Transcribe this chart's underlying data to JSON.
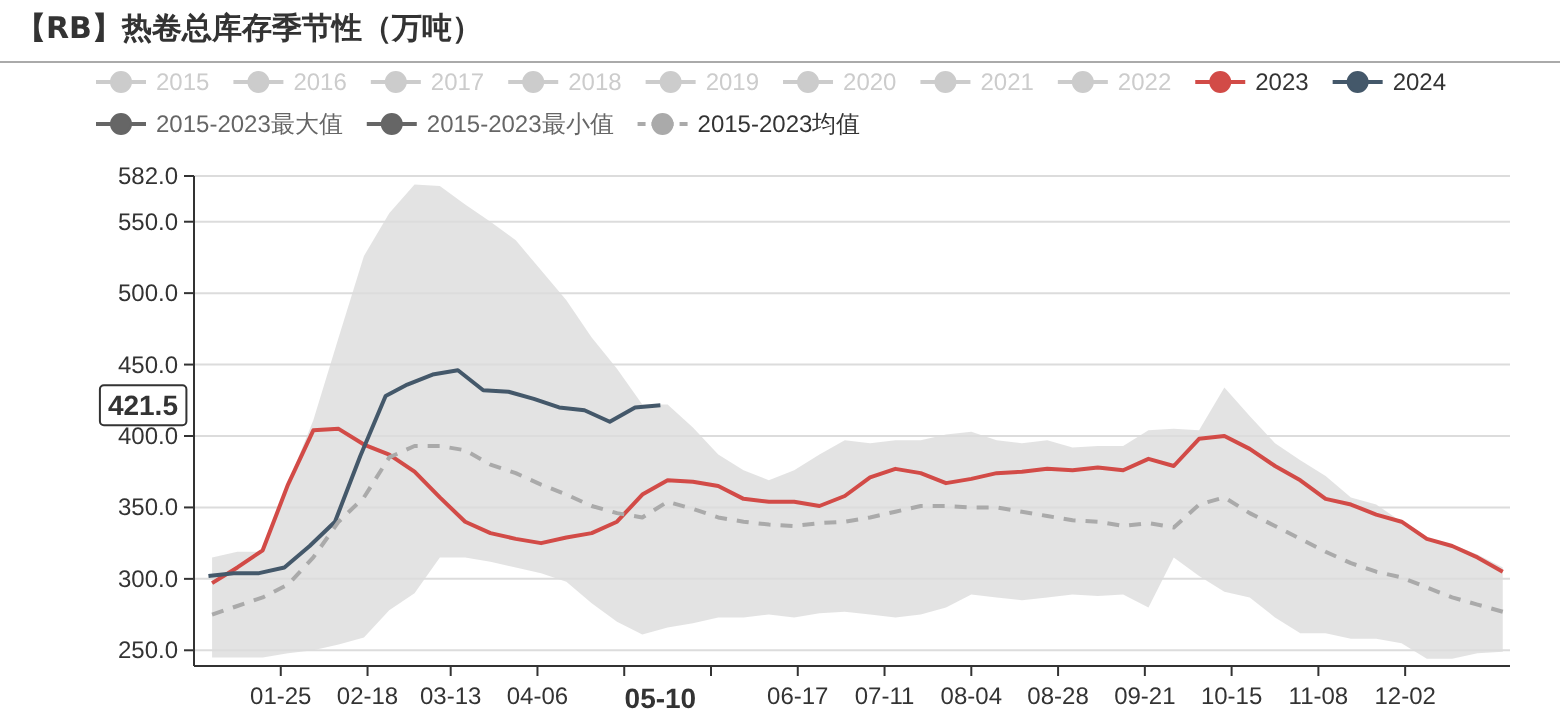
{
  "chart_data": {
    "type": "line",
    "title": "【RB】热卷总库存季节性（万吨）",
    "x": [
      "--01-06",
      "--01-13",
      "--01-20",
      "--01-27",
      "--02-03",
      "--02-10",
      "--02-17",
      "--02-24",
      "--03-03",
      "--03-10",
      "--03-17",
      "--03-24",
      "--03-31",
      "--04-07",
      "--04-14",
      "--04-21",
      "--04-28",
      "--05-05",
      "--05-12",
      "--05-19",
      "--05-26",
      "--06-02",
      "--06-09",
      "--06-16",
      "--06-23",
      "--06-30",
      "--07-07",
      "--07-14",
      "--07-21",
      "--07-28",
      "--08-04",
      "--08-11",
      "--08-18",
      "--08-25",
      "--09-01",
      "--09-08",
      "--09-15",
      "--09-22",
      "--09-29",
      "--10-06",
      "--10-13",
      "--10-20",
      "--10-27",
      "--11-03",
      "--11-10",
      "--11-17",
      "--11-24",
      "--12-01",
      "--12-08",
      "--12-15",
      "--12-22",
      "--12-29"
    ],
    "xlim": [
      "--01-01",
      "--12-31"
    ],
    "xticks": [
      {
        "value": "--01-25",
        "label": "01-25"
      },
      {
        "value": "--02-18",
        "label": "02-18"
      },
      {
        "value": "--03-13",
        "label": "03-13"
      },
      {
        "value": "--04-06",
        "label": "04-06"
      },
      {
        "value": "--04-30",
        "label": null
      },
      {
        "value": "--05-24",
        "label": null
      },
      {
        "value": "--06-17",
        "label": "06-17"
      },
      {
        "value": "--07-11",
        "label": "07-11"
      },
      {
        "value": "--08-04",
        "label": "08-04"
      },
      {
        "value": "--08-28",
        "label": "08-28"
      },
      {
        "value": "--09-21",
        "label": "09-21"
      },
      {
        "value": "--10-15",
        "label": "10-15"
      },
      {
        "value": "--11-08",
        "label": "11-08"
      },
      {
        "value": "--12-02",
        "label": "12-02"
      }
    ],
    "ylim": [
      239,
      582
    ],
    "yticks": [
      {
        "value": 250,
        "label": "250.0"
      },
      {
        "value": 300,
        "label": "300.0"
      },
      {
        "value": 350,
        "label": "350.0"
      },
      {
        "value": 400,
        "label": "400.0"
      },
      {
        "value": 450,
        "label": "450.0"
      },
      {
        "value": 500,
        "label": "500.0"
      },
      {
        "value": 550,
        "label": "550.0"
      },
      {
        "value": 582,
        "label": "582.0"
      }
    ],
    "grid": "y",
    "legend": "top",
    "annotations": [
      "421.5",
      "05-10"
    ],
    "series": [
      {
        "name": "2015",
        "color": "#cccccc",
        "values": [
          null,
          null,
          null,
          null,
          null,
          null,
          null,
          null,
          null,
          null,
          null,
          null,
          null,
          null,
          null,
          null,
          null,
          null,
          null,
          null,
          null,
          null,
          null,
          null,
          null,
          null,
          null,
          null,
          null,
          null,
          null,
          null,
          null,
          null,
          null,
          null,
          null,
          null,
          null,
          null,
          null,
          null,
          null,
          null,
          null,
          null,
          null,
          null,
          null,
          null,
          null,
          null
        ]
      },
      {
        "name": "2016",
        "color": "#cccccc",
        "values": [
          null,
          null,
          null,
          null,
          null,
          null,
          null,
          null,
          null,
          null,
          null,
          null,
          null,
          null,
          null,
          null,
          null,
          null,
          null,
          null,
          null,
          null,
          null,
          null,
          null,
          null,
          null,
          null,
          null,
          null,
          null,
          null,
          null,
          null,
          null,
          null,
          null,
          null,
          null,
          null,
          null,
          null,
          null,
          null,
          null,
          null,
          null,
          null,
          null,
          null,
          null,
          null
        ]
      },
      {
        "name": "2017",
        "color": "#cccccc",
        "values": [
          null,
          null,
          null,
          null,
          null,
          null,
          null,
          null,
          null,
          null,
          null,
          null,
          null,
          null,
          null,
          null,
          null,
          null,
          null,
          null,
          null,
          null,
          null,
          null,
          null,
          null,
          null,
          null,
          null,
          null,
          null,
          null,
          null,
          null,
          null,
          null,
          null,
          null,
          null,
          null,
          null,
          null,
          null,
          null,
          null,
          null,
          null,
          null,
          null,
          null,
          null,
          null
        ]
      },
      {
        "name": "2018",
        "color": "#cccccc",
        "values": [
          null,
          null,
          null,
          null,
          null,
          null,
          null,
          null,
          null,
          null,
          null,
          null,
          null,
          null,
          null,
          null,
          null,
          null,
          null,
          null,
          null,
          null,
          null,
          null,
          null,
          null,
          null,
          null,
          null,
          null,
          null,
          null,
          null,
          null,
          null,
          null,
          null,
          null,
          null,
          null,
          null,
          null,
          null,
          null,
          null,
          null,
          null,
          null,
          null,
          null,
          null,
          null
        ]
      },
      {
        "name": "2019",
        "color": "#cccccc",
        "values": [
          null,
          null,
          null,
          null,
          null,
          null,
          null,
          null,
          null,
          null,
          null,
          null,
          null,
          null,
          null,
          null,
          null,
          null,
          null,
          null,
          null,
          null,
          null,
          null,
          null,
          null,
          null,
          null,
          null,
          null,
          null,
          null,
          null,
          null,
          null,
          null,
          null,
          null,
          null,
          null,
          null,
          null,
          null,
          null,
          null,
          null,
          null,
          null,
          null,
          null,
          null,
          null
        ]
      },
      {
        "name": "2020",
        "color": "#cccccc",
        "values": [
          null,
          null,
          null,
          null,
          null,
          null,
          null,
          null,
          null,
          null,
          null,
          null,
          null,
          null,
          null,
          null,
          null,
          null,
          null,
          null,
          null,
          null,
          null,
          null,
          null,
          null,
          null,
          null,
          null,
          null,
          null,
          null,
          null,
          null,
          null,
          null,
          null,
          null,
          null,
          null,
          null,
          null,
          null,
          null,
          null,
          null,
          null,
          null,
          null,
          null,
          null,
          null
        ]
      },
      {
        "name": "2021",
        "color": "#cccccc",
        "values": [
          null,
          null,
          null,
          null,
          null,
          null,
          null,
          null,
          null,
          null,
          null,
          null,
          null,
          null,
          null,
          null,
          null,
          null,
          null,
          null,
          null,
          null,
          null,
          null,
          null,
          null,
          null,
          null,
          null,
          null,
          null,
          null,
          null,
          null,
          null,
          null,
          null,
          null,
          null,
          null,
          null,
          null,
          null,
          null,
          null,
          null,
          null,
          null,
          null,
          null,
          null,
          null
        ]
      },
      {
        "name": "2022",
        "color": "#cccccc",
        "values": [
          null,
          null,
          null,
          null,
          null,
          null,
          null,
          null,
          null,
          null,
          null,
          null,
          null,
          null,
          null,
          null,
          null,
          null,
          null,
          null,
          null,
          null,
          null,
          null,
          null,
          null,
          null,
          null,
          null,
          null,
          null,
          null,
          null,
          null,
          null,
          null,
          null,
          null,
          null,
          null,
          null,
          null,
          null,
          null,
          null,
          null,
          null,
          null,
          null,
          null,
          null,
          null
        ]
      },
      {
        "name": "2023",
        "color": "#d24b47",
        "values": [
          297,
          308,
          320,
          366,
          404,
          405,
          394,
          387,
          375,
          357,
          340,
          332,
          328,
          325,
          329,
          332,
          340,
          359,
          369,
          368,
          365,
          356,
          354,
          354,
          351,
          358,
          371,
          377,
          374,
          367,
          370,
          374,
          375,
          377,
          376,
          378,
          376,
          384,
          379,
          398,
          400,
          391,
          379,
          369,
          356,
          352,
          345,
          340,
          328,
          323,
          315,
          305
        ]
      },
      {
        "name": "2024",
        "color": "#44586a",
        "x": [
          "--01-05",
          "--01-12",
          "--01-19",
          "--01-26",
          "--02-02",
          "--02-09",
          "--02-16",
          "--02-23",
          "--03-01",
          "--03-08",
          "--03-15",
          "--03-22",
          "--03-29",
          "--04-05",
          "--04-12",
          "--04-19",
          "--04-26",
          "--05-03",
          "--05-10"
        ],
        "values": [
          302,
          304,
          304,
          308,
          323,
          340,
          386,
          428,
          436,
          443,
          446,
          432,
          431,
          426,
          420,
          418,
          410,
          420,
          421.5
        ]
      },
      {
        "name": "2015-2023最大值",
        "color": "#666666",
        "values": [
          null,
          null,
          null,
          null,
          null,
          null,
          null,
          null,
          null,
          null,
          null,
          null,
          null,
          null,
          null,
          null,
          null,
          null,
          null,
          null,
          null,
          null,
          null,
          null,
          null,
          null,
          null,
          null,
          null,
          null,
          null,
          null,
          null,
          null,
          null,
          null,
          null,
          null,
          null,
          null,
          null,
          null,
          null,
          null,
          null,
          null,
          null,
          null,
          null,
          null,
          null,
          null
        ]
      },
      {
        "name": "2015-2023最小值",
        "color": "#666666",
        "values": [
          null,
          null,
          null,
          null,
          null,
          null,
          null,
          null,
          null,
          null,
          null,
          null,
          null,
          null,
          null,
          null,
          null,
          null,
          null,
          null,
          null,
          null,
          null,
          null,
          null,
          null,
          null,
          null,
          null,
          null,
          null,
          null,
          null,
          null,
          null,
          null,
          null,
          null,
          null,
          null,
          null,
          null,
          null,
          null,
          null,
          null,
          null,
          null,
          null,
          null,
          null,
          null
        ]
      },
      {
        "name": "2015-2023均值",
        "color": "#aaaaaa",
        "line_style": "dashed",
        "upper": [
          315,
          319,
          319,
          367,
          411,
          469,
          526,
          556,
          576,
          575,
          562,
          550,
          537,
          516,
          495,
          469,
          447,
          422,
          422,
          406,
          387,
          376,
          369,
          376,
          387,
          397,
          395,
          397,
          397,
          401,
          403,
          397,
          395,
          397,
          392,
          393,
          393,
          404,
          405,
          404,
          434,
          414,
          395,
          383,
          372,
          357,
          352,
          340,
          329,
          324,
          317,
          308
        ],
        "lower": [
          245,
          245,
          245,
          248,
          250,
          254,
          259,
          278,
          290,
          315,
          315,
          312,
          308,
          304,
          298,
          283,
          270,
          261,
          266,
          269,
          273,
          273,
          275,
          273,
          276,
          277,
          275,
          273,
          275,
          280,
          289,
          287,
          285,
          287,
          289,
          288,
          289,
          280,
          315,
          302,
          291,
          287,
          273,
          262,
          262,
          258,
          258,
          255,
          244,
          244,
          248,
          249
        ],
        "values": [
          275,
          281,
          287,
          296,
          315,
          340,
          357,
          385,
          393,
          393,
          390,
          380,
          374,
          366,
          359,
          351,
          346,
          343,
          354,
          349,
          343,
          340,
          338,
          337,
          339,
          340,
          343,
          347,
          351,
          351,
          350,
          350,
          347,
          344,
          341,
          340,
          337,
          339,
          336,
          352,
          357,
          346,
          337,
          328,
          319,
          311,
          305,
          301,
          294,
          287,
          282,
          277
        ]
      }
    ]
  }
}
